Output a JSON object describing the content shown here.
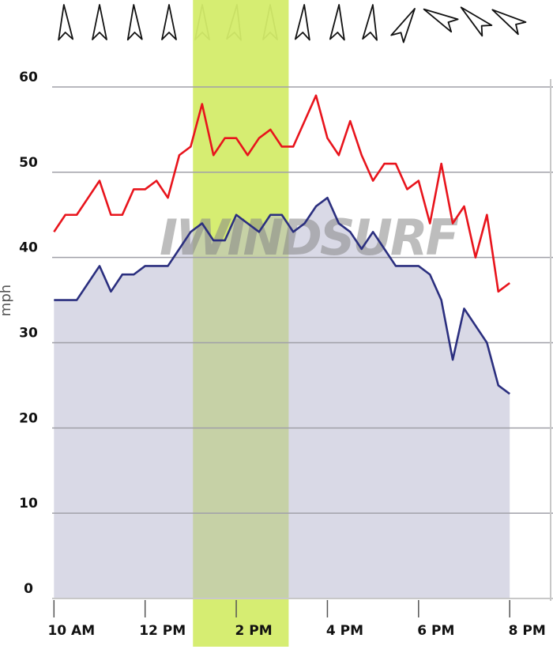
{
  "chart_data": {
    "type": "line",
    "y_label": "mph",
    "watermark": "IWINDSURF",
    "x": [
      10,
      10.25,
      10.5,
      10.75,
      11,
      11.25,
      11.5,
      11.75,
      12,
      12.25,
      12.5,
      12.75,
      13,
      13.25,
      13.5,
      13.75,
      14,
      14.25,
      14.5,
      14.75,
      15,
      15.25,
      15.5,
      15.75,
      16,
      16.25,
      16.5,
      16.75,
      17,
      17.25,
      17.5,
      17.75,
      18,
      18.25,
      18.5,
      18.75,
      19,
      19.25,
      19.5,
      19.75,
      20
    ],
    "series": [
      {
        "color": "#e8141c",
        "fill": false,
        "values": [
          43,
          45,
          45,
          47,
          49,
          45,
          45,
          48,
          48,
          49,
          47,
          52,
          53,
          58,
          52,
          54,
          54,
          52,
          54,
          55,
          53,
          53,
          56,
          59,
          54,
          52,
          56,
          52,
          49,
          51,
          51,
          48,
          49,
          44,
          51,
          44,
          46,
          40,
          45,
          36,
          37
        ]
      },
      {
        "color": "#2b2f7f",
        "fill": true,
        "values": [
          35,
          35,
          35,
          37,
          39,
          36,
          38,
          38,
          39,
          39,
          39,
          41,
          43,
          44,
          42,
          42,
          45,
          44,
          43,
          45,
          45,
          43,
          44,
          46,
          47,
          44,
          43,
          41,
          43,
          41,
          39,
          39,
          39,
          38,
          35,
          28,
          34,
          32,
          30,
          25,
          24
        ]
      }
    ],
    "highlight": {
      "x": [
        13.05,
        15.15
      ],
      "color": "#d4ec6a"
    },
    "xlim": [
      9.96,
      20.95
    ],
    "xticks": [
      {
        "value": 10,
        "label": "10 AM"
      },
      {
        "value": 12,
        "label": "12 PM"
      },
      {
        "value": 14,
        "label": "2 PM"
      },
      {
        "value": 16,
        "label": "4 PM"
      },
      {
        "value": 18,
        "label": "6 PM"
      },
      {
        "value": 20,
        "label": "8 PM"
      }
    ],
    "ylim": [
      0,
      60
    ],
    "yticks": [
      0,
      10,
      20,
      30,
      40,
      50,
      60
    ],
    "grid": true
  }
}
